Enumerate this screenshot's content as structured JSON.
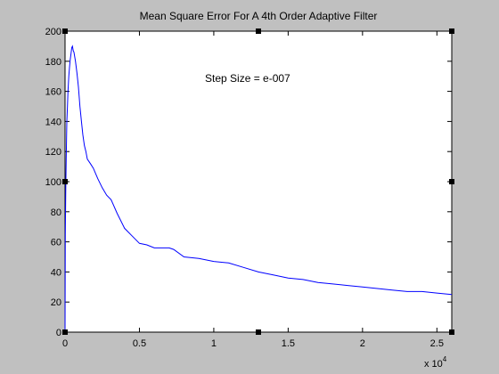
{
  "colors": {
    "background": "#c0c0c0",
    "axes": "#ffffff",
    "line": "#0000ff",
    "frame": "#000000"
  },
  "chart_data": {
    "type": "line",
    "title": "Mean Square Error For A 4th Order Adaptive Filter",
    "annotation": "Step Size = e-007",
    "xlabel": "",
    "ylabel": "",
    "x_exponent_label": "x 10",
    "x_exponent_power": "4",
    "xlim": [
      0,
      26000
    ],
    "ylim": [
      0,
      200
    ],
    "grid": false,
    "legend": "none",
    "x_tick_values": [
      0,
      5000,
      10000,
      15000,
      20000,
      25000
    ],
    "x_tick_labels": [
      "0",
      "0.5",
      "1",
      "1.5",
      "2",
      "2.5"
    ],
    "y_tick_values": [
      0,
      20,
      40,
      60,
      80,
      100,
      120,
      140,
      160,
      180,
      200
    ],
    "y_tick_labels": [
      "0",
      "20",
      "40",
      "60",
      "80",
      "100",
      "120",
      "140",
      "160",
      "180",
      "200"
    ],
    "series": [
      {
        "x": [
          0,
          20,
          50,
          80,
          120,
          160,
          200,
          250,
          300,
          350,
          400,
          450,
          500,
          550,
          600,
          700,
          800,
          900,
          1000,
          1100,
          1200,
          1300,
          1400,
          1500,
          1700,
          1900,
          2200,
          2500,
          2800,
          3100,
          3500,
          4000,
          4500,
          5000,
          5500,
          6000,
          6500,
          7000,
          7300,
          8000,
          9000,
          10000,
          11000,
          12000,
          13000,
          14000,
          15000,
          16000,
          17000,
          18000,
          19000,
          20000,
          21000,
          22000,
          23000,
          24000,
          25000,
          26000
        ],
        "y": [
          0,
          65,
          95,
          115,
          140,
          150,
          160,
          170,
          176,
          181,
          185,
          189,
          190,
          187,
          186,
          180,
          172,
          163,
          150,
          140,
          131,
          124,
          120,
          115,
          112,
          109,
          102,
          96,
          91,
          88,
          79,
          69,
          64,
          59,
          58,
          56,
          56,
          56,
          55,
          50,
          49,
          47,
          46,
          43,
          40,
          38,
          36,
          35,
          33,
          32,
          31,
          30,
          29,
          28,
          27,
          27,
          26,
          25
        ]
      }
    ]
  }
}
